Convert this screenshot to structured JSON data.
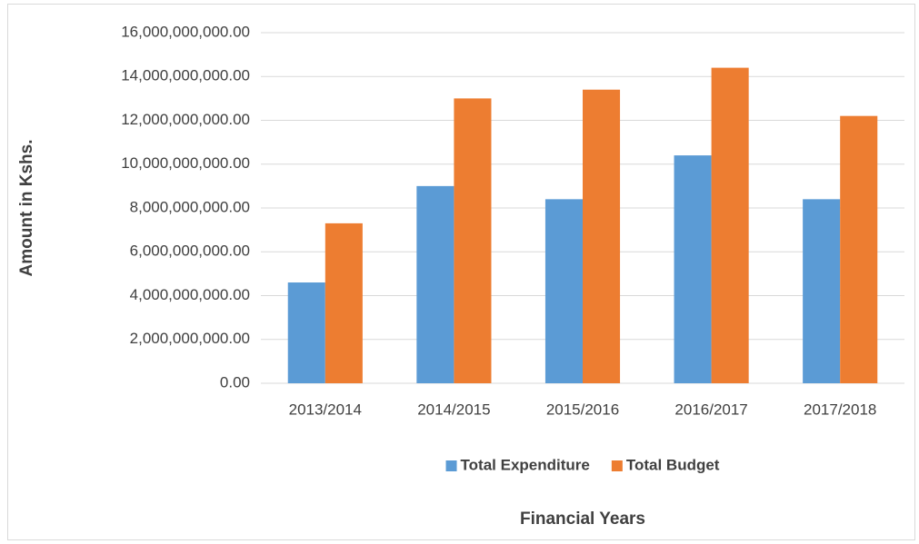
{
  "chart_data": {
    "type": "bar",
    "y_label": "Amount in Kshs.",
    "x_label": "Financial Years",
    "categories": [
      "2013/2014",
      "2014/2015",
      "2015/2016",
      "2016/2017",
      "2017/2018"
    ],
    "series": [
      {
        "name": "Total Expenditure",
        "color": "#5b9bd5",
        "values": [
          4600000000,
          9000000000,
          8400000000,
          10400000000,
          8400000000
        ]
      },
      {
        "name": "Total Budget",
        "color": "#ed7d31",
        "values": [
          7300000000,
          13000000000,
          13400000000,
          14400000000,
          12200000000
        ]
      }
    ],
    "ylim": [
      0,
      16000000000
    ],
    "yticks": [
      {
        "value": 0,
        "label": "0.00"
      },
      {
        "value": 2000000000,
        "label": "2,000,000,000.00"
      },
      {
        "value": 4000000000,
        "label": "4,000,000,000.00"
      },
      {
        "value": 6000000000,
        "label": "6,000,000,000.00"
      },
      {
        "value": 8000000000,
        "label": "8,000,000,000.00"
      },
      {
        "value": 10000000000,
        "label": "10,000,000,000.00"
      },
      {
        "value": 12000000000,
        "label": "12,000,000,000.00"
      },
      {
        "value": 14000000000,
        "label": "14,000,000,000.00"
      },
      {
        "value": 16000000000,
        "label": "16,000,000,000.00"
      }
    ],
    "grid": true,
    "legend": "bottom"
  }
}
